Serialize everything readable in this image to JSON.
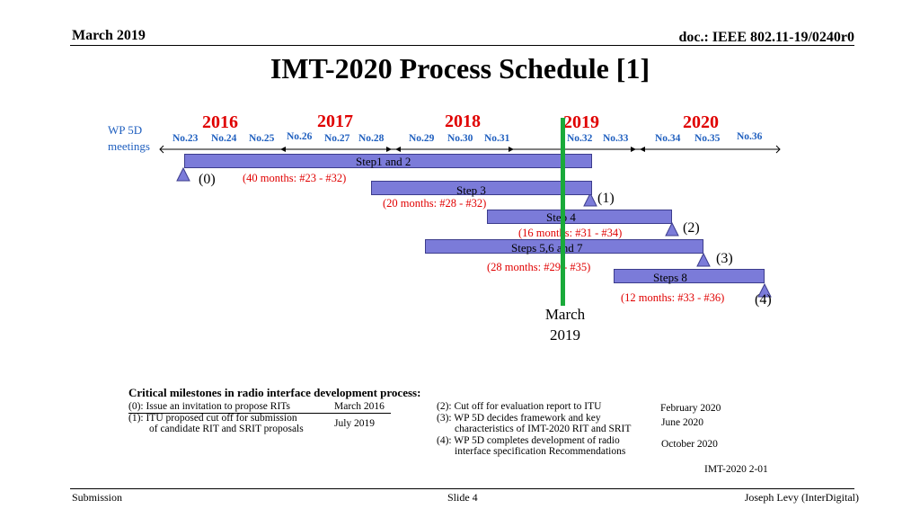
{
  "header": {
    "date": "March 2019",
    "doc": "doc.: IEEE 802.11-19/0240r0"
  },
  "title": "IMT-2020 Process Schedule [1]",
  "timeline": {
    "wp5d_label": "WP 5D meetings",
    "wp5d_line1": "WP 5D",
    "wp5d_line2": "meetings",
    "years": [
      "2016",
      "2017",
      "2018",
      "2019",
      "2020"
    ],
    "meetings": [
      "No.23",
      "No.24",
      "No.25",
      "No.26",
      "No.27",
      "No.28",
      "No.29",
      "No.30",
      "No.31",
      "No.32",
      "No.33",
      "No.34",
      "No.35",
      "No.36"
    ]
  },
  "steps": [
    {
      "label": "Step1 and 2",
      "duration": "(40 months: #23 - #32)",
      "marker": "(0)"
    },
    {
      "label": "Step 3",
      "duration": "(20 months: #28 - #32)",
      "marker": "(1)"
    },
    {
      "label": "Step 4",
      "duration": "(16 months: #31 - #34)",
      "marker": "(2)"
    },
    {
      "label": "Steps 5,6 and 7",
      "duration": "(28 months: #29 - #35)",
      "marker": "(3)"
    },
    {
      "label": "Steps 8",
      "duration": "(12 months: #33 - #36)",
      "marker": "(4)"
    }
  ],
  "current_marker": {
    "line1": "March",
    "line2": "2019",
    "color": "#1aaa3a"
  },
  "milestones": {
    "heading": "Critical milestones in radio interface development process:",
    "items": [
      {
        "line1": "(0): Issue an invitation to propose RITs",
        "line2": "",
        "date": "March 2016"
      },
      {
        "line1": "(1): ITU proposed cut off for submission",
        "line2": "of candidate RIT and SRIT proposals",
        "date": "July 2019"
      },
      {
        "line1": "(2): Cut off for evaluation report to ITU",
        "line2": "",
        "date": "February 2020"
      },
      {
        "line1": "(3): WP 5D decides framework and key",
        "line2": "characteristics of IMT-2020 RIT and SRIT",
        "date": "June 2020"
      },
      {
        "line1": "(4): WP 5D completes development of radio",
        "line2": "interface specification Recommendations",
        "date": "October 2020"
      }
    ],
    "ref": "IMT-2020 2-01"
  },
  "footer": {
    "left": "Submission",
    "center": "Slide 4",
    "right": "Joseph Levy (InterDigital)"
  },
  "colors": {
    "year": "#e00000",
    "meeting": "#1f5fbf",
    "bar": "#7b7bd9",
    "milestone_line": "#1aaa3a"
  }
}
